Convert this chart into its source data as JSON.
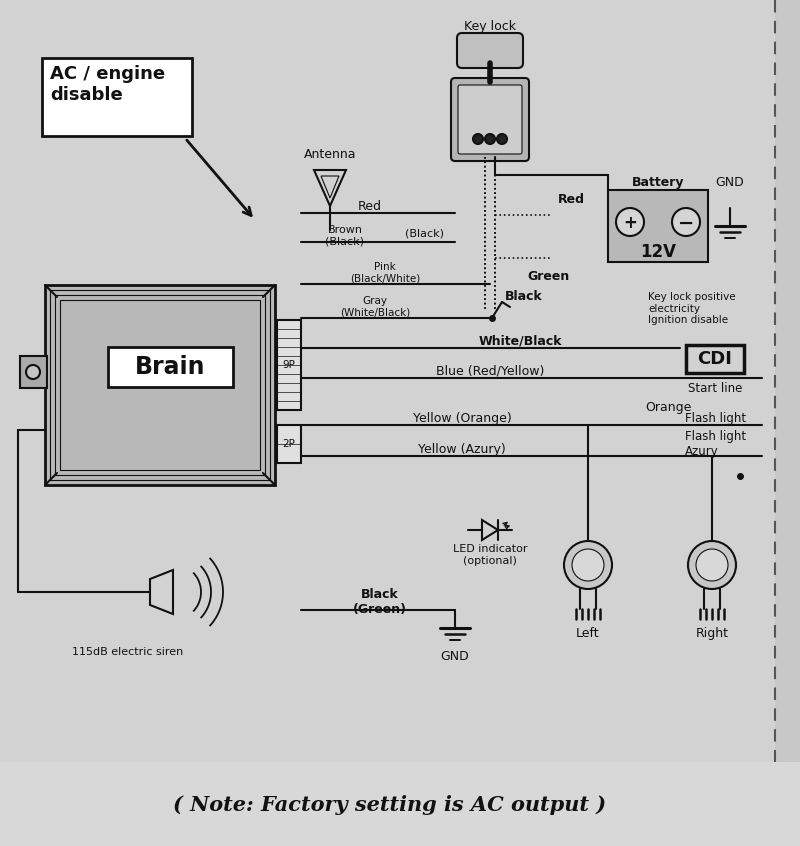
{
  "bg_color": "#c8c8c8",
  "diagram_bg": "#d2d2d2",
  "line_color": "#111111",
  "note": "( Note: Factory setting is AC output )",
  "labels": {
    "ac_engine": "AC / engine\ndisable",
    "antenna": "Antenna",
    "key_lock": "Key lock",
    "battery": "Battery",
    "brain": "Brain",
    "9p": "9P",
    "2p": "2P",
    "red1": "Red",
    "brown_black": "Brown\n(Black)",
    "black_paren": "(Black)",
    "pink": "Pink\n(Black/White)",
    "gray": "Gray\n(White/Black)",
    "black_label": "Black",
    "white_black": "White/Black",
    "green": "Green",
    "red2": "Red",
    "gnd_bat": "GND",
    "gnd_bot": "GND",
    "key_lock_pos": "Key lock positive\nelectricity\nIgnition disable",
    "cdi": "CDI",
    "blue": "Blue (Red/Yellow)",
    "start_line": "Start line",
    "yellow_orange": "Yellow (Orange)",
    "flash_orange": "Flash light",
    "orange": "Orange",
    "yellow_azury": "Yellow (Azury)",
    "flash_azury": "Flash light\nAzury",
    "led": "LED indicator\n(optional)",
    "black_green": "Black\n(Green)",
    "siren": "115dB electric siren",
    "left": "Left",
    "right": "Right",
    "12v": "12V"
  }
}
